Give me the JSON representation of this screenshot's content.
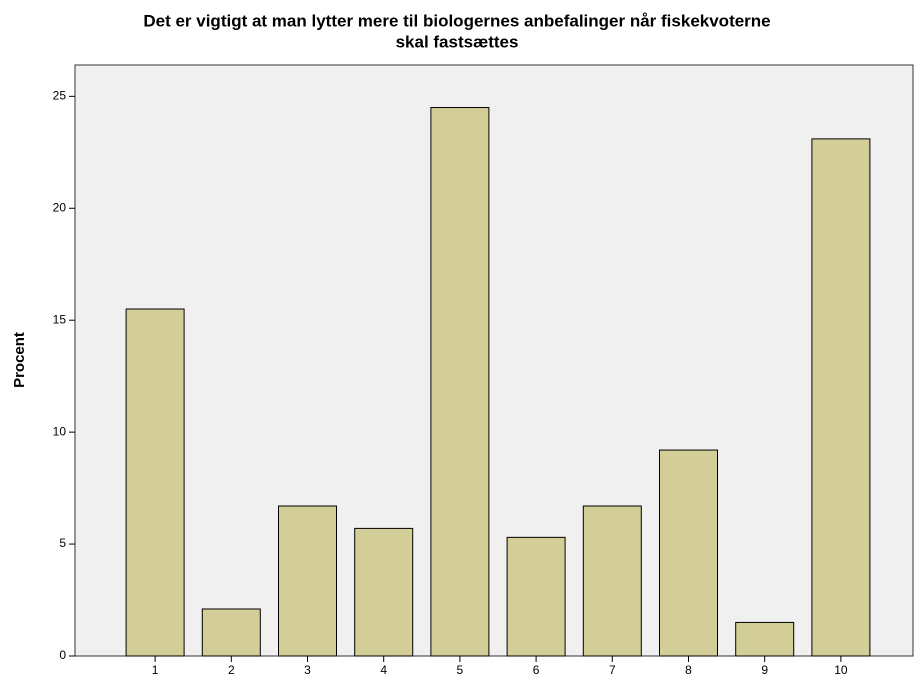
{
  "chart_data": {
    "type": "bar",
    "title": [
      "Det er vigtigt at man lytter mere til biologernes anbefalinger når fiskekvoterne",
      "skal fastsættes"
    ],
    "y_label": "Procent",
    "categories": [
      "1",
      "2",
      "3",
      "4",
      "5",
      "6",
      "7",
      "8",
      "9",
      "10"
    ],
    "values": [
      15.5,
      2.1,
      6.7,
      5.7,
      24.5,
      5.3,
      6.7,
      9.2,
      1.5,
      23.1
    ],
    "color": "#d3ce97",
    "ylim": [
      0,
      26.4
    ],
    "yticks": [
      0,
      5,
      10,
      15,
      20,
      25
    ],
    "grid": false
  }
}
